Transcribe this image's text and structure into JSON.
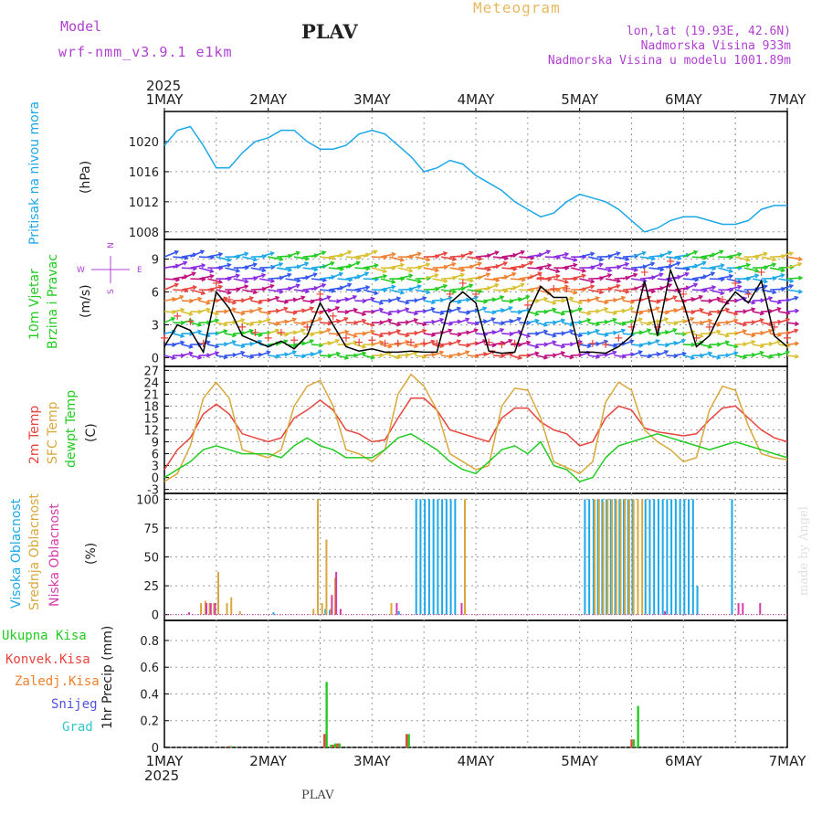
{
  "header": {
    "model_label": "Model",
    "model_name": "wrf-nmm_v3.9.1 e1km",
    "station": "PLAV",
    "meteogram": "Meteogram",
    "lonlat": "lon,lat (19.93E, 42.6N)",
    "elev": "Nadmorska Visina 933m",
    "elev_model": "Nadmorska Visina u modelu 1001.89m",
    "made_by": "made by Angel",
    "footer": "PLAV"
  },
  "colors": {
    "pressure": "#1ca8e8",
    "temp2m": "#e8433c",
    "sfc_temp": "#d9a83c",
    "dewpoint": "#22cc22",
    "cloud_high": "#1ca8e8",
    "cloud_mid": "#d9a83c",
    "cloud_low": "#d63ca8",
    "precip_total": "#22cc22",
    "precip_conv": "#e8433c",
    "precip_frz": "#f0802c",
    "precip_snow": "#5050e0",
    "precip_hail": "#30c8c8",
    "title_purple": "#b040d0",
    "title_orange": "#e8b860"
  },
  "time_axis": {
    "year": "2025",
    "day_labels": [
      "1MAY",
      "2MAY",
      "3MAY",
      "4MAY",
      "5MAY",
      "6MAY",
      "7MAY"
    ]
  },
  "chart_data": [
    {
      "type": "line",
      "panel": "pressure",
      "ylabel_left": "Pritisak na nivou mora",
      "ylabel_unit": "(hPa)",
      "ylim": [
        1007,
        1024
      ],
      "yticks": [
        "1008",
        "1012",
        "1016",
        "1020"
      ],
      "x_unit": "hours since 1MAY 00UTC",
      "series": [
        {
          "x": [
            0,
            3,
            6,
            9,
            12,
            15,
            18,
            21,
            24,
            27,
            30,
            33,
            36,
            39,
            42,
            45,
            48,
            51,
            54,
            57,
            60,
            63,
            66,
            69,
            72,
            75,
            78,
            81,
            84,
            87,
            90,
            93,
            96,
            99,
            102,
            105,
            108,
            111,
            114,
            117,
            120,
            123,
            126,
            129,
            132,
            135,
            138,
            141,
            144
          ],
          "values": [
            1019.5,
            1021.5,
            1022,
            1019.5,
            1016.5,
            1016.5,
            1018.5,
            1020,
            1020.5,
            1021.5,
            1021.5,
            1020,
            1019,
            1019,
            1019.5,
            1021,
            1021.5,
            1021,
            1019.5,
            1018,
            1016,
            1016.5,
            1017.5,
            1017,
            1015.5,
            1014.5,
            1013.5,
            1012,
            1011,
            1010,
            1010.5,
            1012,
            1013,
            1012.5,
            1012,
            1011,
            1009.5,
            1008,
            1008.5,
            1009.5,
            1010,
            1010,
            1009.5,
            1009,
            1009,
            1009.5,
            1011,
            1011.5,
            1011.5
          ]
        }
      ]
    },
    {
      "type": "line",
      "panel": "wind",
      "ylabel_left1": "10m Vjetar",
      "ylabel_left2": "Brzina i Pravac",
      "ylabel_unit": "(m/s)",
      "compass": [
        "N",
        "S",
        "W",
        "E"
      ],
      "ylim": [
        -0.8,
        10.8
      ],
      "yticks": [
        "0",
        "3",
        "6",
        "9"
      ],
      "series": [
        {
          "x": [
            0,
            3,
            6,
            9,
            12,
            15,
            18,
            21,
            24,
            27,
            30,
            33,
            36,
            39,
            42,
            45,
            48,
            51,
            54,
            57,
            60,
            63,
            66,
            69,
            72,
            75,
            78,
            81,
            84,
            87,
            90,
            93,
            96,
            99,
            102,
            105,
            108,
            111,
            114,
            117,
            120,
            123,
            126,
            129,
            132,
            135,
            138,
            141,
            144
          ],
          "values": [
            1,
            3,
            2.5,
            0.5,
            6,
            4.5,
            2,
            1.5,
            1,
            1.5,
            0.8,
            2,
            5,
            3,
            1,
            0.6,
            0.8,
            0.5,
            0.5,
            0.6,
            0.5,
            0.5,
            5,
            6,
            5,
            0.6,
            0.4,
            0.5,
            4,
            6.5,
            5.5,
            5.5,
            0.5,
            0.5,
            0.4,
            1,
            2,
            7,
            2,
            8,
            5,
            1,
            2,
            4.5,
            6,
            5,
            7,
            2,
            1
          ]
        }
      ]
    },
    {
      "type": "line",
      "panel": "temperature",
      "ylabel_left1": "2m Temp",
      "ylabel_left2": "SFC Temp",
      "ylabel_left3": "dewpt Temp",
      "ylabel_unit": "(C)",
      "ylim": [
        -4,
        28
      ],
      "yticks": [
        "-3",
        "0",
        "3",
        "6",
        "9",
        "12",
        "15",
        "18",
        "21",
        "24",
        "27"
      ],
      "series": [
        {
          "name": "2m Temp",
          "x": [
            0,
            3,
            6,
            9,
            12,
            15,
            18,
            21,
            24,
            27,
            30,
            33,
            36,
            39,
            42,
            45,
            48,
            51,
            54,
            57,
            60,
            63,
            66,
            69,
            72,
            75,
            78,
            81,
            84,
            87,
            90,
            93,
            96,
            99,
            102,
            105,
            108,
            111,
            114,
            117,
            120,
            123,
            126,
            129,
            132,
            135,
            138,
            141,
            144
          ],
          "values": [
            2,
            7,
            10,
            16,
            18.5,
            16,
            11,
            10,
            9,
            10,
            15,
            17,
            19.5,
            17,
            12,
            11,
            9,
            9.5,
            15,
            20,
            20,
            17,
            12,
            11,
            10,
            9,
            15,
            17.5,
            17.5,
            14,
            12,
            11,
            8,
            9,
            15,
            18,
            17,
            12.5,
            11.5,
            11,
            10.5,
            11,
            14.5,
            17.5,
            18,
            15,
            12,
            10,
            9
          ]
        },
        {
          "name": "SFC Temp",
          "x": [
            0,
            3,
            6,
            9,
            12,
            15,
            18,
            21,
            24,
            27,
            30,
            33,
            36,
            39,
            42,
            45,
            48,
            51,
            54,
            57,
            60,
            63,
            66,
            69,
            72,
            75,
            78,
            81,
            84,
            87,
            90,
            93,
            96,
            99,
            102,
            105,
            108,
            111,
            114,
            117,
            120,
            123,
            126,
            129,
            132,
            135,
            138,
            141,
            144
          ],
          "values": [
            -1,
            1,
            8,
            20,
            24,
            20,
            7,
            6,
            5,
            7,
            18,
            23,
            24.5,
            18,
            7,
            6,
            4,
            7,
            21,
            26,
            23,
            17,
            6,
            4,
            2,
            3,
            18,
            22.5,
            22,
            15,
            4,
            2.5,
            1,
            4,
            19,
            24,
            22,
            12,
            9,
            7,
            4,
            5,
            17,
            23,
            22,
            13,
            6,
            5,
            4.5
          ]
        },
        {
          "name": "dewpt Temp",
          "x": [
            0,
            3,
            6,
            9,
            12,
            15,
            18,
            21,
            24,
            27,
            30,
            33,
            36,
            39,
            42,
            45,
            48,
            51,
            54,
            57,
            60,
            63,
            66,
            69,
            72,
            75,
            78,
            81,
            84,
            87,
            90,
            93,
            96,
            99,
            102,
            105,
            108,
            111,
            114,
            117,
            120,
            123,
            126,
            129,
            132,
            135,
            138,
            141,
            144
          ],
          "values": [
            0,
            2,
            4,
            7,
            8,
            7,
            6,
            6,
            6,
            5,
            8,
            10,
            8,
            7,
            5,
            5,
            5,
            7,
            10,
            11,
            9,
            7,
            4,
            2,
            1,
            4,
            7,
            8,
            6,
            9,
            3,
            2,
            -1,
            0,
            5,
            8,
            9,
            10,
            11,
            10,
            9,
            8,
            7,
            8,
            9,
            8,
            7,
            6,
            5
          ]
        }
      ]
    },
    {
      "type": "bar",
      "panel": "cloud",
      "ylabel_left1": "Visoka Oblacnost",
      "ylabel_left2": "Srednja Oblacnost",
      "ylabel_left3": "Niska Oblacnost",
      "ylabel_unit": "(%)",
      "ylim": [
        -5,
        105
      ],
      "yticks": [
        "0",
        "25",
        "50",
        "75",
        "100"
      ],
      "series": [
        {
          "name": "Visoka Oblacnost",
          "x": [
            25,
            37,
            38,
            54,
            58,
            59,
            60,
            61,
            62,
            63,
            64,
            65,
            66,
            67,
            97,
            98,
            99,
            100,
            101,
            102,
            103,
            104,
            105,
            106,
            107,
            108,
            111,
            112,
            113,
            114,
            115,
            116,
            117,
            118,
            119,
            120,
            121,
            122,
            123,
            131
          ],
          "values": [
            2,
            5,
            4,
            3,
            100,
            100,
            100,
            100,
            100,
            100,
            100,
            100,
            100,
            100,
            100,
            100,
            100,
            100,
            100,
            100,
            100,
            100,
            100,
            100,
            100,
            100,
            100,
            100,
            100,
            100,
            100,
            100,
            100,
            100,
            100,
            100,
            100,
            100,
            25,
            100
          ]
        },
        {
          "name": "Srednja Oblacnost",
          "x": [
            8,
            9,
            10,
            11,
            12,
            14,
            15,
            17,
            34,
            35,
            36,
            37,
            38,
            39,
            52,
            69,
            99,
            100,
            101,
            102,
            103,
            104,
            105,
            106,
            107,
            108,
            109,
            110
          ],
          "values": [
            10,
            12,
            10,
            10,
            37,
            10,
            15,
            3,
            5,
            100,
            10,
            65,
            5,
            32,
            10,
            100,
            100,
            100,
            98,
            100,
            100,
            100,
            100,
            100,
            100,
            100,
            100,
            100
          ]
        },
        {
          "name": "Niska Oblacnost",
          "x": [
            5,
            9,
            10,
            11,
            38,
            39,
            40,
            53,
            68,
            115,
            132,
            133,
            137
          ],
          "values": [
            2,
            10,
            10,
            10,
            17,
            37,
            5,
            10,
            10,
            3,
            10,
            10,
            10
          ]
        }
      ]
    },
    {
      "type": "bar",
      "panel": "precip",
      "ylabel_left": "1hr Precip (mm)",
      "legend": [
        "Ukupna Kisa",
        "Konvek.Kisa",
        "Zaledj.Kisa",
        "Snijeg",
        "Grad"
      ],
      "ylim": [
        0,
        0.95
      ],
      "yticks": [
        "0",
        "0.2",
        "0.4",
        "0.6",
        "0.8"
      ],
      "series": [
        {
          "name": "Ukupna Kisa",
          "x": [
            15,
            37,
            38,
            39,
            40,
            56,
            108,
            109
          ],
          "values": [
            0.01,
            0.49,
            0.02,
            0.03,
            0.03,
            0.1,
            0.06,
            0.31
          ]
        },
        {
          "name": "Konvek.Kisa",
          "x": [
            15,
            37,
            39,
            40,
            56,
            108
          ],
          "values": [
            0.01,
            0.1,
            0.02,
            0.03,
            0.1,
            0.06
          ]
        }
      ]
    }
  ]
}
